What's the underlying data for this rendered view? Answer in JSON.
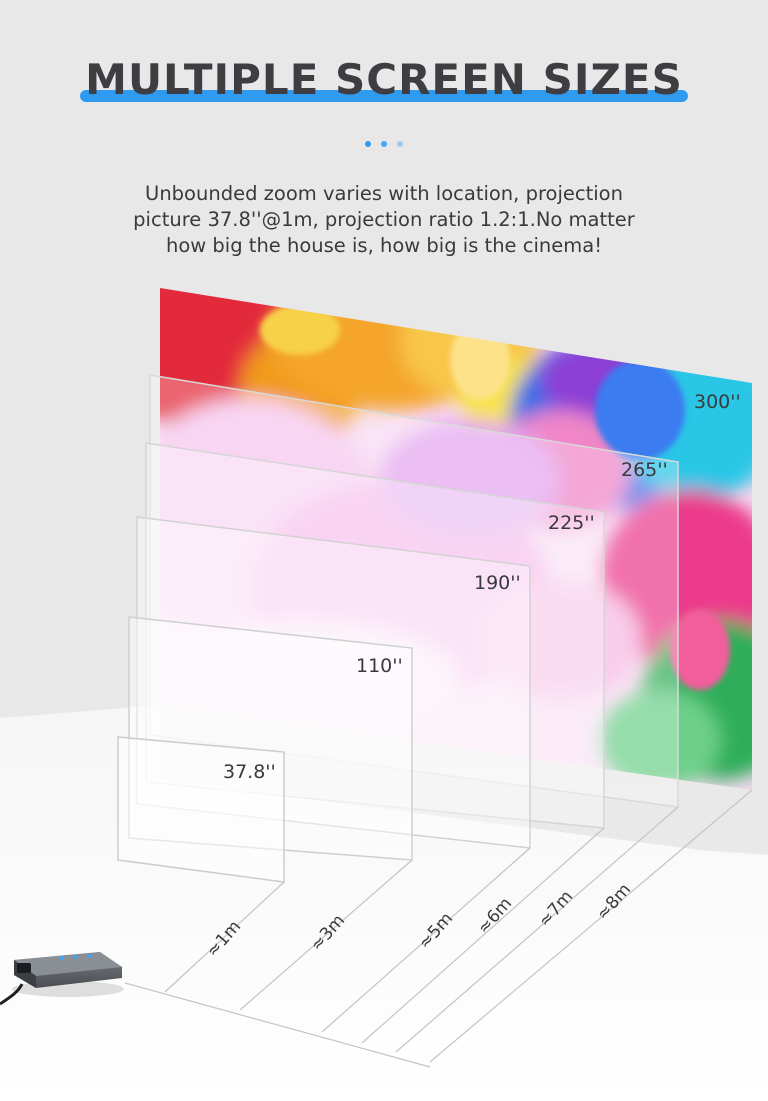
{
  "title": "MULTIPLE SCREEN SIZES",
  "subtitle_lines": [
    "Unbounded zoom varies with location, projection",
    "picture 37.8''@1m, projection ratio 1.2:1.No matter",
    "how big the house is, how big is the cinema!"
  ],
  "screen_sizes": [
    "300''",
    "265''",
    "225''",
    "190''",
    "110''",
    "37.8''"
  ],
  "distances": [
    "≈1m",
    "≈3m",
    "≈5m",
    "≈6m",
    "≈7m",
    "≈8m"
  ],
  "colors": {
    "accent": "#2f9bf0",
    "background": "#e8e8e9",
    "text": "#3a3a3e"
  },
  "icons": [
    "projector-icon"
  ]
}
